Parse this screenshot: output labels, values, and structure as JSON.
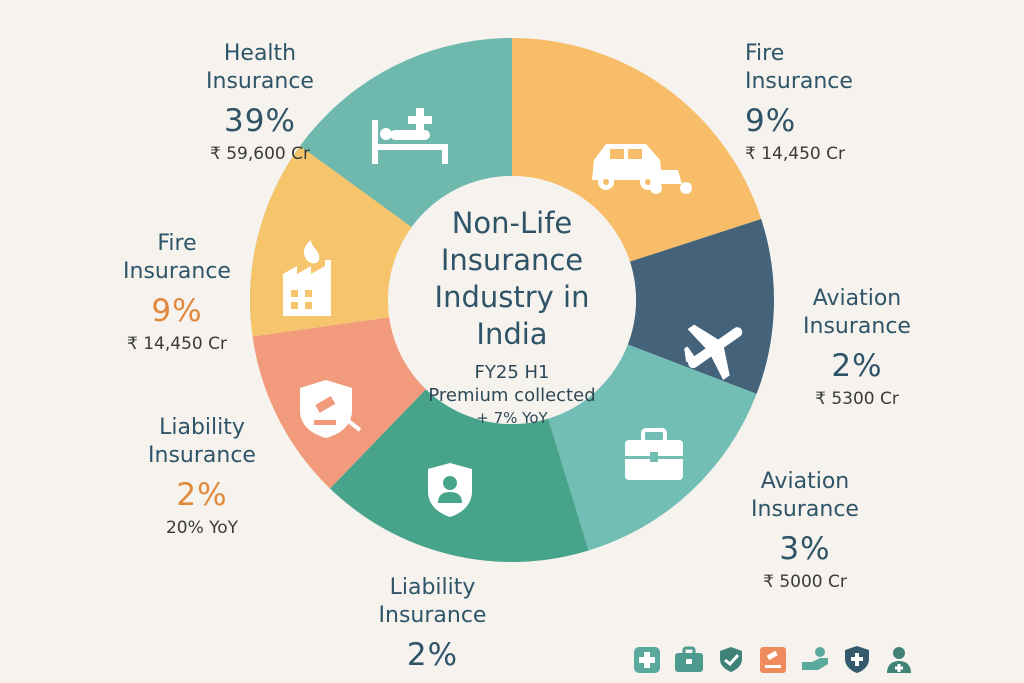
{
  "center": {
    "title_lines": [
      "Non-Life",
      "Insurance",
      "Industry in",
      "India"
    ],
    "subtitle": "FY25 H1",
    "subtitle2": "Premium collected",
    "growth": "+ 7% YoY"
  },
  "chart_data": {
    "type": "pie",
    "title": "Non-Life Insurance Industry in India",
    "slices": [
      {
        "label": "Health Insurance",
        "value": 39,
        "amount": "₹ 59,600 Cr",
        "color": "#6fb8ae",
        "icon": "hospital-bed-icon"
      },
      {
        "label": "Fire Insurance",
        "value": 9,
        "amount": "₹ 14,450 Cr",
        "color": "#f7bd68",
        "icon": "car-scooter-icon"
      },
      {
        "label": "Aviation Insurance",
        "value": 2,
        "amount": "₹ 5300 Cr",
        "color": "#44627a",
        "icon": "airplane-icon"
      },
      {
        "label": "Aviation Insurance",
        "value": 3,
        "amount": "₹ 5000 Cr",
        "color": "#72bdb4",
        "icon": "briefcase-icon"
      },
      {
        "label": "Liability Insurance",
        "value": 2,
        "amount": "",
        "color": "#48a38b",
        "icon": "person-shield-icon"
      },
      {
        "label": "Liability Insurance",
        "value": 2,
        "amount": "20% YoY",
        "color": "#f29b7c",
        "icon": "gavel-shield-icon"
      },
      {
        "label": "Fire Insurance",
        "value": 9,
        "amount": "₹ 14,450 Cr",
        "color": "#f6c56b",
        "icon": "factory-fire-icon"
      }
    ]
  },
  "labels": [
    {
      "name_lines": [
        "Health",
        "Insurance"
      ],
      "pct": "39%",
      "amount": "₹ 59,600 Cr"
    },
    {
      "name_lines": [
        "Fire",
        "Insurance"
      ],
      "pct": "9%",
      "amount": "₹ 14,450 Cr"
    },
    {
      "name_lines": [
        "Aviation",
        "Insurance"
      ],
      "pct": "2%",
      "amount": "₹ 5300 Cr"
    },
    {
      "name_lines": [
        "Aviation",
        "Insurance"
      ],
      "pct": "3%",
      "amount": "₹ 5000 Cr"
    },
    {
      "name_lines": [
        "Liability",
        "Insurance"
      ],
      "pct": "2%",
      "amount": ""
    },
    {
      "name_lines": [
        "Liability",
        "Insurance"
      ],
      "pct": "2%",
      "amount": "20% YoY"
    },
    {
      "name_lines": [
        "Fire",
        "Insurance"
      ],
      "pct": "9%",
      "amount": "₹ 14,450 Cr"
    }
  ],
  "icon_row": [
    {
      "icon": "health-plus-icon",
      "color": "#5aa99d"
    },
    {
      "icon": "briefcase-icon",
      "color": "#4f9a8f"
    },
    {
      "icon": "hand-shield-icon",
      "color": "#3f8278"
    },
    {
      "icon": "gavel-icon",
      "color": "#ef8a5c"
    },
    {
      "icon": "hand-coin-icon",
      "color": "#5aa99d"
    },
    {
      "icon": "shield-plus-icon",
      "color": "#345a6c"
    },
    {
      "icon": "person-plus-icon",
      "color": "#3f8278"
    }
  ]
}
